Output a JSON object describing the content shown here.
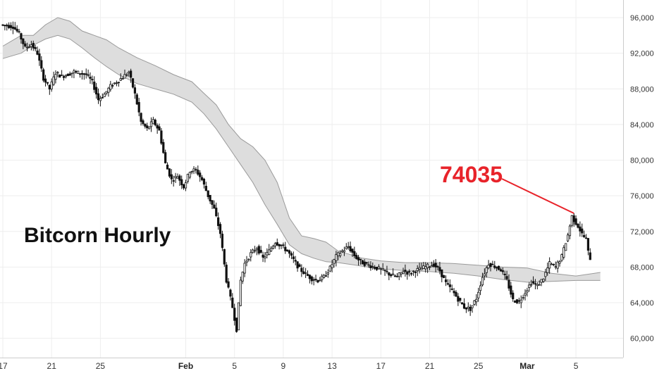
{
  "chart_data": {
    "type": "candlestick",
    "title": "Bitcorn Hourly",
    "xlabel": "",
    "ylabel": "",
    "ylim": [
      58000,
      97500
    ],
    "y_ticks": [
      60000,
      64000,
      68000,
      72000,
      76000,
      80000,
      84000,
      88000,
      92000,
      96000
    ],
    "y_tick_labels": [
      "60,000",
      "64,000",
      "68,000",
      "72,000",
      "76,000",
      "80,000",
      "84,000",
      "88,000",
      "92,000",
      "96,000"
    ],
    "x_axis_type": "date",
    "x_range": [
      "2025-01-17",
      "2025-03-07"
    ],
    "x_ticks": [
      {
        "date": "2025-01-17",
        "label": "17",
        "bold": false
      },
      {
        "date": "2025-01-21",
        "label": "21",
        "bold": false
      },
      {
        "date": "2025-01-25",
        "label": "25",
        "bold": false
      },
      {
        "date": "2025-02-01",
        "label": "Feb",
        "bold": true
      },
      {
        "date": "2025-02-05",
        "label": "5",
        "bold": false
      },
      {
        "date": "2025-02-09",
        "label": "9",
        "bold": false
      },
      {
        "date": "2025-02-13",
        "label": "13",
        "bold": false
      },
      {
        "date": "2025-02-17",
        "label": "17",
        "bold": false
      },
      {
        "date": "2025-02-21",
        "label": "21",
        "bold": false
      },
      {
        "date": "2025-02-25",
        "label": "25",
        "bold": false
      },
      {
        "date": "2025-03-01",
        "label": "Mar",
        "bold": true
      },
      {
        "date": "2025-03-05",
        "label": "5",
        "bold": false
      }
    ],
    "price_path": [
      [
        "2025-01-17T00:00",
        95200
      ],
      [
        "2025-01-18T00:00",
        95000
      ],
      [
        "2025-01-18T12:00",
        94200
      ],
      [
        "2025-01-19T00:00",
        92600
      ],
      [
        "2025-01-19T12:00",
        93000
      ],
      [
        "2025-01-20T00:00",
        92000
      ],
      [
        "2025-01-20T12:00",
        89200
      ],
      [
        "2025-01-21T00:00",
        88000
      ],
      [
        "2025-01-21T12:00",
        89800
      ],
      [
        "2025-01-22T00:00",
        89400
      ],
      [
        "2025-01-23T00:00",
        89900
      ],
      [
        "2025-01-24T00:00",
        89600
      ],
      [
        "2025-01-24T12:00",
        88800
      ],
      [
        "2025-01-25T00:00",
        86800
      ],
      [
        "2025-01-25T12:00",
        87400
      ],
      [
        "2025-01-26T00:00",
        88300
      ],
      [
        "2025-01-27T00:00",
        89300
      ],
      [
        "2025-01-27T12:00",
        89900
      ],
      [
        "2025-01-28T00:00",
        87400
      ],
      [
        "2025-01-28T12:00",
        84300
      ],
      [
        "2025-01-29T00:00",
        83500
      ],
      [
        "2025-01-29T12:00",
        84400
      ],
      [
        "2025-01-30T00:00",
        83300
      ],
      [
        "2025-01-30T12:00",
        79600
      ],
      [
        "2025-01-31T00:00",
        77800
      ],
      [
        "2025-01-31T12:00",
        78200
      ],
      [
        "2025-02-01T00:00",
        77000
      ],
      [
        "2025-02-01T12:00",
        78800
      ],
      [
        "2025-02-02T00:00",
        78900
      ],
      [
        "2025-02-02T12:00",
        77800
      ],
      [
        "2025-02-03T00:00",
        76000
      ],
      [
        "2025-02-03T12:00",
        74500
      ],
      [
        "2025-02-04T00:00",
        71800
      ],
      [
        "2025-02-04T12:00",
        66500
      ],
      [
        "2025-02-05T00:00",
        63500
      ],
      [
        "2025-02-05T08:00",
        61000
      ],
      [
        "2025-02-05T16:00",
        66500
      ],
      [
        "2025-02-06T00:00",
        68400
      ],
      [
        "2025-02-06T12:00",
        69500
      ],
      [
        "2025-02-07T00:00",
        70200
      ],
      [
        "2025-02-07T12:00",
        69000
      ],
      [
        "2025-02-08T00:00",
        69800
      ],
      [
        "2025-02-08T12:00",
        70800
      ],
      [
        "2025-02-09T00:00",
        70400
      ],
      [
        "2025-02-09T12:00",
        69800
      ],
      [
        "2025-02-10T00:00",
        68800
      ],
      [
        "2025-02-10T12:00",
        67800
      ],
      [
        "2025-02-11T00:00",
        67200
      ],
      [
        "2025-02-11T12:00",
        66700
      ],
      [
        "2025-02-12T00:00",
        66500
      ],
      [
        "2025-02-12T12:00",
        66900
      ],
      [
        "2025-02-13T00:00",
        67900
      ],
      [
        "2025-02-13T12:00",
        69200
      ],
      [
        "2025-02-14T00:00",
        69800
      ],
      [
        "2025-02-14T12:00",
        70300
      ],
      [
        "2025-02-15T00:00",
        69300
      ],
      [
        "2025-02-15T12:00",
        68600
      ],
      [
        "2025-02-16T00:00",
        68300
      ],
      [
        "2025-02-17T00:00",
        67800
      ],
      [
        "2025-02-17T12:00",
        67500
      ],
      [
        "2025-02-18T00:00",
        67100
      ],
      [
        "2025-02-18T12:00",
        66900
      ],
      [
        "2025-02-19T00:00",
        67600
      ],
      [
        "2025-02-19T12:00",
        67300
      ],
      [
        "2025-02-20T00:00",
        67600
      ],
      [
        "2025-02-21T00:00",
        68100
      ],
      [
        "2025-02-21T12:00",
        68300
      ],
      [
        "2025-02-22T00:00",
        67600
      ],
      [
        "2025-02-22T12:00",
        66200
      ],
      [
        "2025-02-23T00:00",
        65400
      ],
      [
        "2025-02-23T12:00",
        64400
      ],
      [
        "2025-02-24T00:00",
        63500
      ],
      [
        "2025-02-24T12:00",
        63300
      ],
      [
        "2025-02-25T00:00",
        64500
      ],
      [
        "2025-02-25T12:00",
        66900
      ],
      [
        "2025-02-26T00:00",
        68400
      ],
      [
        "2025-02-26T12:00",
        68100
      ],
      [
        "2025-02-27T00:00",
        67700
      ],
      [
        "2025-02-27T12:00",
        66500
      ],
      [
        "2025-02-28T00:00",
        64300
      ],
      [
        "2025-02-28T12:00",
        64100
      ],
      [
        "2025-03-01T00:00",
        65200
      ],
      [
        "2025-03-01T12:00",
        66300
      ],
      [
        "2025-03-02T00:00",
        65900
      ],
      [
        "2025-03-02T12:00",
        66800
      ],
      [
        "2025-03-03T00:00",
        68400
      ],
      [
        "2025-03-03T12:00",
        68000
      ],
      [
        "2025-03-04T00:00",
        69200
      ],
      [
        "2025-03-04T12:00",
        71600
      ],
      [
        "2025-03-04T20:00",
        73700
      ],
      [
        "2025-03-05T00:00",
        73300
      ],
      [
        "2025-03-05T08:00",
        72600
      ],
      [
        "2025-03-05T16:00",
        71700
      ],
      [
        "2025-03-06T00:00",
        71100
      ],
      [
        "2025-03-06T06:00",
        69000
      ]
    ],
    "cloud_upper": [
      [
        "2025-01-17T00:00",
        92800
      ],
      [
        "2025-01-18T12:00",
        94000
      ],
      [
        "2025-01-19T12:00",
        94000
      ],
      [
        "2025-01-20T12:00",
        95200
      ],
      [
        "2025-01-21T12:00",
        96000
      ],
      [
        "2025-01-22T12:00",
        95600
      ],
      [
        "2025-01-23T12:00",
        94500
      ],
      [
        "2025-01-24T12:00",
        94000
      ],
      [
        "2025-01-25T12:00",
        93500
      ],
      [
        "2025-01-26T12:00",
        92600
      ],
      [
        "2025-01-28T00:00",
        91500
      ],
      [
        "2025-01-29T12:00",
        90600
      ],
      [
        "2025-01-31T00:00",
        89600
      ],
      [
        "2025-02-01T12:00",
        88800
      ],
      [
        "2025-02-02T12:00",
        87500
      ],
      [
        "2025-02-03T12:00",
        86200
      ],
      [
        "2025-02-04T12:00",
        84000
      ],
      [
        "2025-02-05T12:00",
        82400
      ],
      [
        "2025-02-06T12:00",
        81500
      ],
      [
        "2025-02-07T12:00",
        80000
      ],
      [
        "2025-02-08T12:00",
        77500
      ],
      [
        "2025-02-09T12:00",
        73500
      ],
      [
        "2025-02-10T12:00",
        71500
      ],
      [
        "2025-02-11T12:00",
        71200
      ],
      [
        "2025-02-12T12:00",
        70800
      ],
      [
        "2025-02-13T12:00",
        69800
      ],
      [
        "2025-02-14T12:00",
        69400
      ],
      [
        "2025-02-15T12:00",
        69000
      ],
      [
        "2025-02-17T00:00",
        68700
      ],
      [
        "2025-02-19T00:00",
        68500
      ],
      [
        "2025-02-21T00:00",
        68500
      ],
      [
        "2025-02-23T00:00",
        68400
      ],
      [
        "2025-02-25T00:00",
        68200
      ],
      [
        "2025-02-27T00:00",
        68000
      ],
      [
        "2025-03-01T00:00",
        67900
      ],
      [
        "2025-03-03T00:00",
        67300
      ],
      [
        "2025-03-05T00:00",
        67000
      ],
      [
        "2025-03-07T00:00",
        67400
      ]
    ],
    "cloud_lower": [
      [
        "2025-01-17T00:00",
        91400
      ],
      [
        "2025-01-18T12:00",
        92000
      ],
      [
        "2025-01-19T12:00",
        92900
      ],
      [
        "2025-01-20T12:00",
        93600
      ],
      [
        "2025-01-21T12:00",
        94000
      ],
      [
        "2025-01-22T12:00",
        93600
      ],
      [
        "2025-01-23T12:00",
        92600
      ],
      [
        "2025-01-24T12:00",
        91500
      ],
      [
        "2025-01-25T12:00",
        90500
      ],
      [
        "2025-01-26T12:00",
        89600
      ],
      [
        "2025-01-28T00:00",
        88600
      ],
      [
        "2025-01-29T12:00",
        88000
      ],
      [
        "2025-01-31T00:00",
        87400
      ],
      [
        "2025-02-01T12:00",
        86500
      ],
      [
        "2025-02-02T12:00",
        85200
      ],
      [
        "2025-02-03T12:00",
        83500
      ],
      [
        "2025-02-04T12:00",
        81500
      ],
      [
        "2025-02-05T12:00",
        79500
      ],
      [
        "2025-02-06T12:00",
        77500
      ],
      [
        "2025-02-07T12:00",
        75000
      ],
      [
        "2025-02-08T12:00",
        72800
      ],
      [
        "2025-02-09T12:00",
        70500
      ],
      [
        "2025-02-10T12:00",
        69500
      ],
      [
        "2025-02-11T12:00",
        69000
      ],
      [
        "2025-02-12T12:00",
        68600
      ],
      [
        "2025-02-13T12:00",
        68500
      ],
      [
        "2025-02-14T12:00",
        68300
      ],
      [
        "2025-02-15T12:00",
        68100
      ],
      [
        "2025-02-17T00:00",
        67800
      ],
      [
        "2025-02-19T00:00",
        67600
      ],
      [
        "2025-02-21T00:00",
        67500
      ],
      [
        "2025-02-23T00:00",
        67300
      ],
      [
        "2025-02-25T00:00",
        67000
      ],
      [
        "2025-02-27T00:00",
        66600
      ],
      [
        "2025-03-01T00:00",
        66300
      ],
      [
        "2025-03-03T00:00",
        66400
      ],
      [
        "2025-03-05T00:00",
        66500
      ],
      [
        "2025-03-07T00:00",
        66500
      ]
    ],
    "annotation": {
      "text": "74035",
      "value": 74035,
      "at": "2025-03-04T20:00",
      "color": "#e8232a"
    },
    "colors": {
      "candle": "#111111",
      "cloud_fill": "#dddddd",
      "cloud_line": "#9a9a9a",
      "grid": "#eeeeee"
    },
    "axis_position": "right",
    "grid": true
  }
}
